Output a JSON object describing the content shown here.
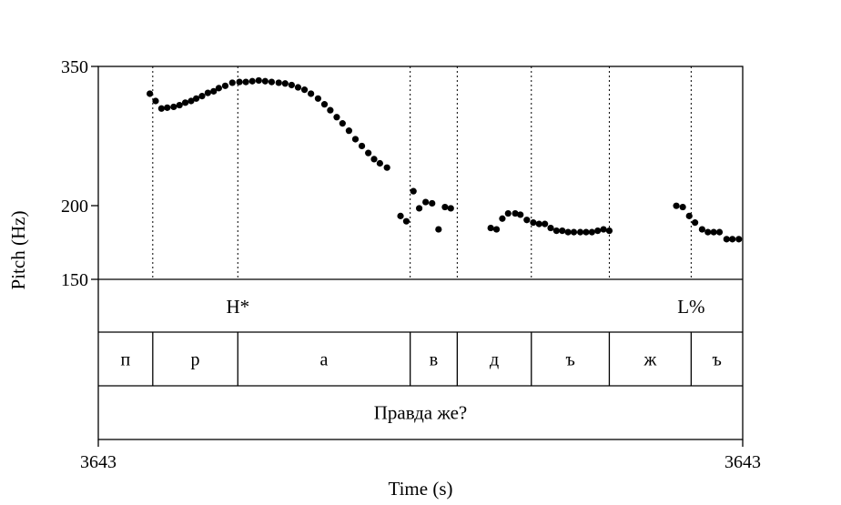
{
  "chart_data": {
    "type": "scatter",
    "xlabel": "Time (s)",
    "ylabel": "Pitch (Hz)",
    "x_tick_labels": [
      "3643",
      "3643"
    ],
    "y_ticks": [
      150,
      200,
      350
    ],
    "y_tick_labels": [
      "150",
      "200",
      "350"
    ],
    "ylim": [
      150,
      350
    ],
    "yscale": "log",
    "xlim": [
      0,
      1
    ],
    "grid": false,
    "segment_boundaries": [
      0.0845,
      0.2165,
      0.484,
      0.557,
      0.672,
      0.793,
      0.92
    ],
    "tones": [
      {
        "label": "H*",
        "x": 0.2165
      },
      {
        "label": "L%",
        "x": 0.92
      }
    ],
    "segments": [
      {
        "label": "п",
        "start": 0.0,
        "end": 0.0845
      },
      {
        "label": "р",
        "start": 0.0845,
        "end": 0.2165
      },
      {
        "label": "а",
        "start": 0.2165,
        "end": 0.484
      },
      {
        "label": "в",
        "start": 0.484,
        "end": 0.557
      },
      {
        "label": "д",
        "start": 0.557,
        "end": 0.672
      },
      {
        "label": "ъ",
        "start": 0.672,
        "end": 0.793
      },
      {
        "label": "ж",
        "start": 0.793,
        "end": 0.92
      },
      {
        "label": "ъ",
        "start": 0.92,
        "end": 1.0
      }
    ],
    "words": [
      {
        "label": "Правда же?",
        "start": 0.0,
        "end": 1.0
      }
    ],
    "points": [
      [
        0.08,
        314
      ],
      [
        0.089,
        305
      ],
      [
        0.098,
        296
      ],
      [
        0.107,
        297
      ],
      [
        0.117,
        298
      ],
      [
        0.126,
        300
      ],
      [
        0.135,
        303
      ],
      [
        0.144,
        305
      ],
      [
        0.152,
        308
      ],
      [
        0.161,
        311
      ],
      [
        0.17,
        315
      ],
      [
        0.179,
        317
      ],
      [
        0.187,
        321
      ],
      [
        0.197,
        324
      ],
      [
        0.208,
        328
      ],
      [
        0.219,
        329
      ],
      [
        0.229,
        329
      ],
      [
        0.239,
        330
      ],
      [
        0.249,
        331
      ],
      [
        0.259,
        330
      ],
      [
        0.269,
        329
      ],
      [
        0.28,
        328
      ],
      [
        0.29,
        327
      ],
      [
        0.3,
        325
      ],
      [
        0.31,
        322
      ],
      [
        0.32,
        319
      ],
      [
        0.33,
        314
      ],
      [
        0.341,
        308
      ],
      [
        0.351,
        301
      ],
      [
        0.36,
        294
      ],
      [
        0.37,
        286
      ],
      [
        0.379,
        279
      ],
      [
        0.389,
        271
      ],
      [
        0.399,
        262
      ],
      [
        0.409,
        255
      ],
      [
        0.419,
        248
      ],
      [
        0.428,
        242
      ],
      [
        0.437,
        238
      ],
      [
        0.448,
        234
      ],
      [
        0.469,
        193
      ],
      [
        0.478,
        189
      ],
      [
        0.489,
        213
      ],
      [
        0.498,
        199
      ],
      [
        0.508,
        204
      ],
      [
        0.518,
        203
      ],
      [
        0.528,
        183
      ],
      [
        0.538,
        200
      ],
      [
        0.547,
        199
      ],
      [
        0.609,
        184
      ],
      [
        0.618,
        183
      ],
      [
        0.627,
        191
      ],
      [
        0.636,
        195
      ],
      [
        0.647,
        195
      ],
      [
        0.655,
        194
      ],
      [
        0.665,
        190
      ],
      [
        0.675,
        188
      ],
      [
        0.684,
        187
      ],
      [
        0.693,
        187
      ],
      [
        0.702,
        184
      ],
      [
        0.711,
        182
      ],
      [
        0.72,
        182
      ],
      [
        0.729,
        181
      ],
      [
        0.738,
        181
      ],
      [
        0.748,
        181
      ],
      [
        0.757,
        181
      ],
      [
        0.766,
        181
      ],
      [
        0.775,
        182
      ],
      [
        0.784,
        183
      ],
      [
        0.793,
        182
      ],
      [
        0.897,
        201
      ],
      [
        0.907,
        200
      ],
      [
        0.917,
        193
      ],
      [
        0.926,
        188
      ],
      [
        0.937,
        183
      ],
      [
        0.946,
        181
      ],
      [
        0.955,
        181
      ],
      [
        0.964,
        181
      ],
      [
        0.975,
        176
      ],
      [
        0.984,
        176
      ],
      [
        0.994,
        176
      ]
    ]
  }
}
